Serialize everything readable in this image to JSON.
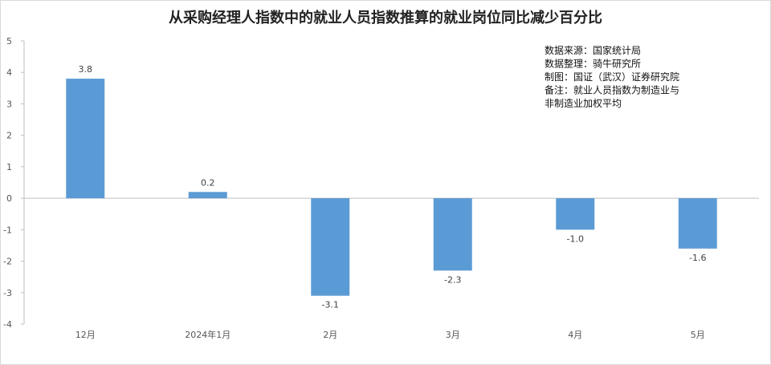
{
  "chart_data": {
    "type": "bar",
    "title": "从采购经理人指数中的就业人员指数推算的就业岗位同比减少百分比",
    "categories": [
      "12月",
      "2024年1月",
      "2月",
      "3月",
      "4月",
      "5月"
    ],
    "values": [
      3.8,
      0.2,
      -3.1,
      -2.3,
      -1.0,
      -1.6
    ],
    "data_labels": [
      "3.8",
      "0.2",
      "-3.1",
      "-2.3",
      "-1.0",
      "-1.6"
    ],
    "ylim": [
      -4,
      5
    ],
    "yticks": [
      5,
      4,
      3,
      2,
      1,
      0,
      -1,
      -2,
      -3,
      -4
    ],
    "ytick_labels": [
      "5",
      "4",
      "3",
      "2",
      "1",
      "0",
      "-1",
      "-2",
      "-3",
      "-4"
    ],
    "xlabel": "",
    "ylabel": "",
    "grid": false,
    "bar_color": "#5b9bd5",
    "annotations": [
      "数据来源：国家统计局",
      "数据整理：骑牛研究所",
      "制图：国证（武汉）证券研究院",
      "备注：就业人员指数为制造业与",
      "非制造业加权平均"
    ]
  }
}
